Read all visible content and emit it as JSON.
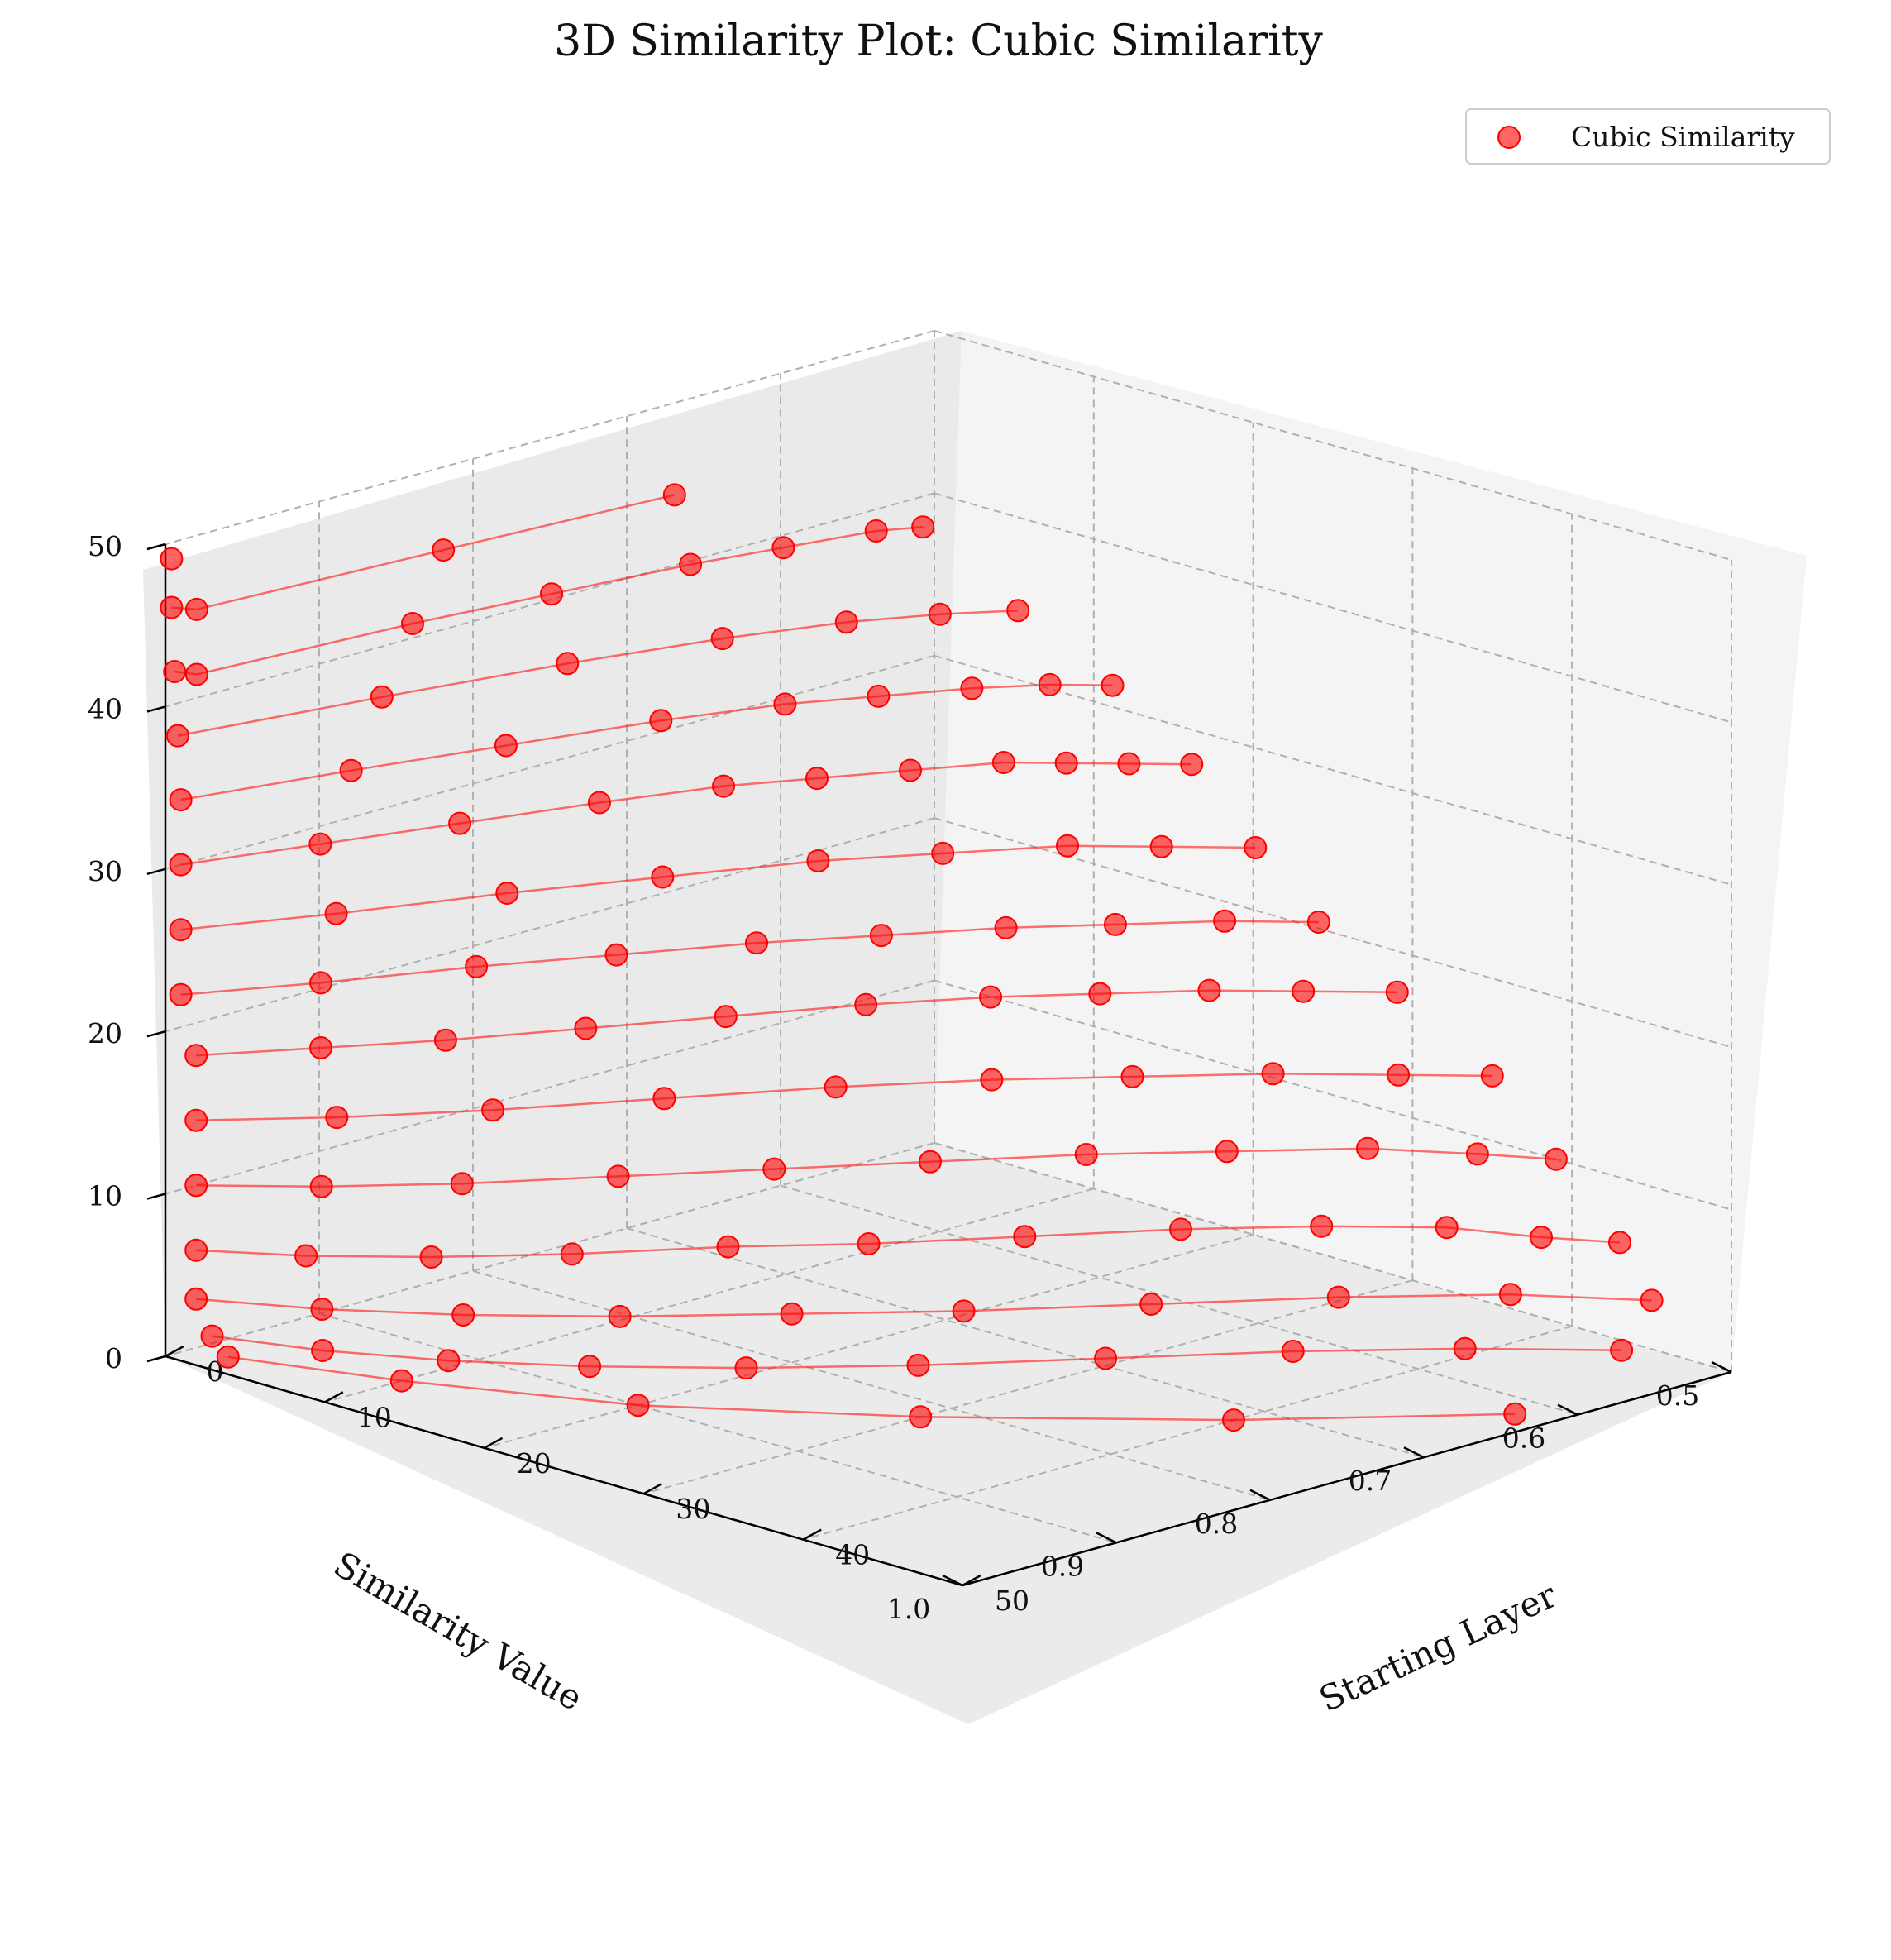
{
  "chart_data": {
    "type": "scatter",
    "projection": "3d",
    "title": "3D Similarity Plot: Cubic Similarity",
    "xlabel": "Starting Layer",
    "ylabel": "Similarity Value",
    "zlabel": "",
    "xlim": [
      0,
      50
    ],
    "ylim": [
      0.5,
      1.0
    ],
    "zlim": [
      0,
      50
    ],
    "x_ticks": [
      "0",
      "10",
      "20",
      "30",
      "40",
      "50"
    ],
    "y_ticks": [
      "0.5",
      "0.6",
      "0.7",
      "0.8",
      "0.9",
      "1.0"
    ],
    "z_ticks": [
      "0",
      "10",
      "20",
      "30",
      "40",
      "50"
    ],
    "grid": true,
    "legend_position": "top-right",
    "color": "#ff0000",
    "series": [
      {
        "name": "Cubic Similarity",
        "values_note": "",
        "values": [
          {
            "z": 49,
            "x": [
              0
            ],
            "y": [
              0.996
            ]
          },
          {
            "z": 46,
            "x": [
              0,
              1,
              2,
              3
            ],
            "y": [
              0.996,
              0.99,
              0.84,
              0.7
            ]
          },
          {
            "z": 42,
            "x": [
              0,
              1,
              2,
              3,
              4,
              5,
              6,
              7
            ],
            "y": [
              0.994,
              0.99,
              0.86,
              0.78,
              0.7,
              0.65,
              0.6,
              0.58
            ]
          },
          {
            "z": 38,
            "x": [
              0,
              2,
              4,
              6,
              8,
              10,
              12
            ],
            "y": [
              0.992,
              0.88,
              0.78,
              0.7,
              0.64,
              0.6,
              0.57
            ]
          },
          {
            "z": 34,
            "x": [
              0,
              2,
              4,
              6,
              8,
              10,
              12,
              14,
              16
            ],
            "y": [
              0.99,
              0.9,
              0.82,
              0.74,
              0.68,
              0.64,
              0.6,
              0.57,
              0.55
            ]
          },
          {
            "z": 30,
            "x": [
              0,
              2,
              4,
              6,
              8,
              10,
              12,
              14,
              16,
              18,
              20
            ],
            "y": [
              0.99,
              0.92,
              0.85,
              0.78,
              0.72,
              0.68,
              0.64,
              0.6,
              0.58,
              0.56,
              0.54
            ]
          },
          {
            "z": 26,
            "x": [
              0,
              3,
              6,
              9,
              12,
              15,
              18,
              21,
              24
            ],
            "y": [
              0.99,
              0.92,
              0.84,
              0.77,
              0.7,
              0.65,
              0.6,
              0.57,
              0.54
            ]
          },
          {
            "z": 22,
            "x": [
              0,
              3,
              6,
              9,
              12,
              15,
              18,
              21,
              24,
              27
            ],
            "y": [
              0.99,
              0.93,
              0.86,
              0.8,
              0.74,
              0.69,
              0.64,
              0.6,
              0.56,
              0.53
            ]
          },
          {
            "z": 18,
            "x": [
              0,
              3,
              6,
              9,
              12,
              15,
              18,
              21,
              24,
              27,
              30
            ],
            "y": [
              0.98,
              0.93,
              0.88,
              0.82,
              0.76,
              0.7,
              0.65,
              0.61,
              0.57,
              0.54,
              0.51
            ]
          },
          {
            "z": 14,
            "x": [
              0,
              4,
              8,
              12,
              16,
              20,
              24,
              28,
              32,
              35
            ],
            "y": [
              0.98,
              0.93,
              0.87,
              0.8,
              0.73,
              0.67,
              0.62,
              0.57,
              0.53,
              0.5
            ]
          },
          {
            "z": 10,
            "x": [
              0,
              4,
              8,
              12,
              16,
              20,
              24,
              28,
              32,
              36,
              39
            ],
            "y": [
              0.98,
              0.94,
              0.89,
              0.83,
              0.77,
              0.71,
              0.65,
              0.6,
              0.55,
              0.52,
              0.5
            ]
          },
          {
            "z": 6,
            "x": [
              0,
              4,
              8,
              12,
              16,
              20,
              24,
              28,
              32,
              36,
              40,
              43
            ],
            "y": [
              0.98,
              0.95,
              0.91,
              0.86,
              0.8,
              0.75,
              0.69,
              0.63,
              0.58,
              0.54,
              0.52,
              0.5
            ]
          },
          {
            "z": 3,
            "x": [
              0,
              5,
              10,
              15,
              20,
              25,
              30,
              35,
              40,
              45
            ],
            "y": [
              0.98,
              0.95,
              0.91,
              0.86,
              0.8,
              0.74,
              0.67,
              0.6,
              0.54,
              0.5
            ]
          },
          {
            "z": 1,
            "x": [
              1,
              6,
              11,
              16,
              21,
              26,
              31,
              36,
              41,
              46
            ],
            "y": [
              0.98,
              0.96,
              0.93,
              0.89,
              0.84,
              0.78,
              0.71,
              0.64,
              0.58,
              0.53
            ]
          },
          {
            "z": 0,
            "x": [
              2,
              10,
              20,
              30,
              40,
              48
            ],
            "y": [
              0.98,
              0.95,
              0.9,
              0.82,
              0.72,
              0.62
            ]
          }
        ]
      }
    ]
  }
}
